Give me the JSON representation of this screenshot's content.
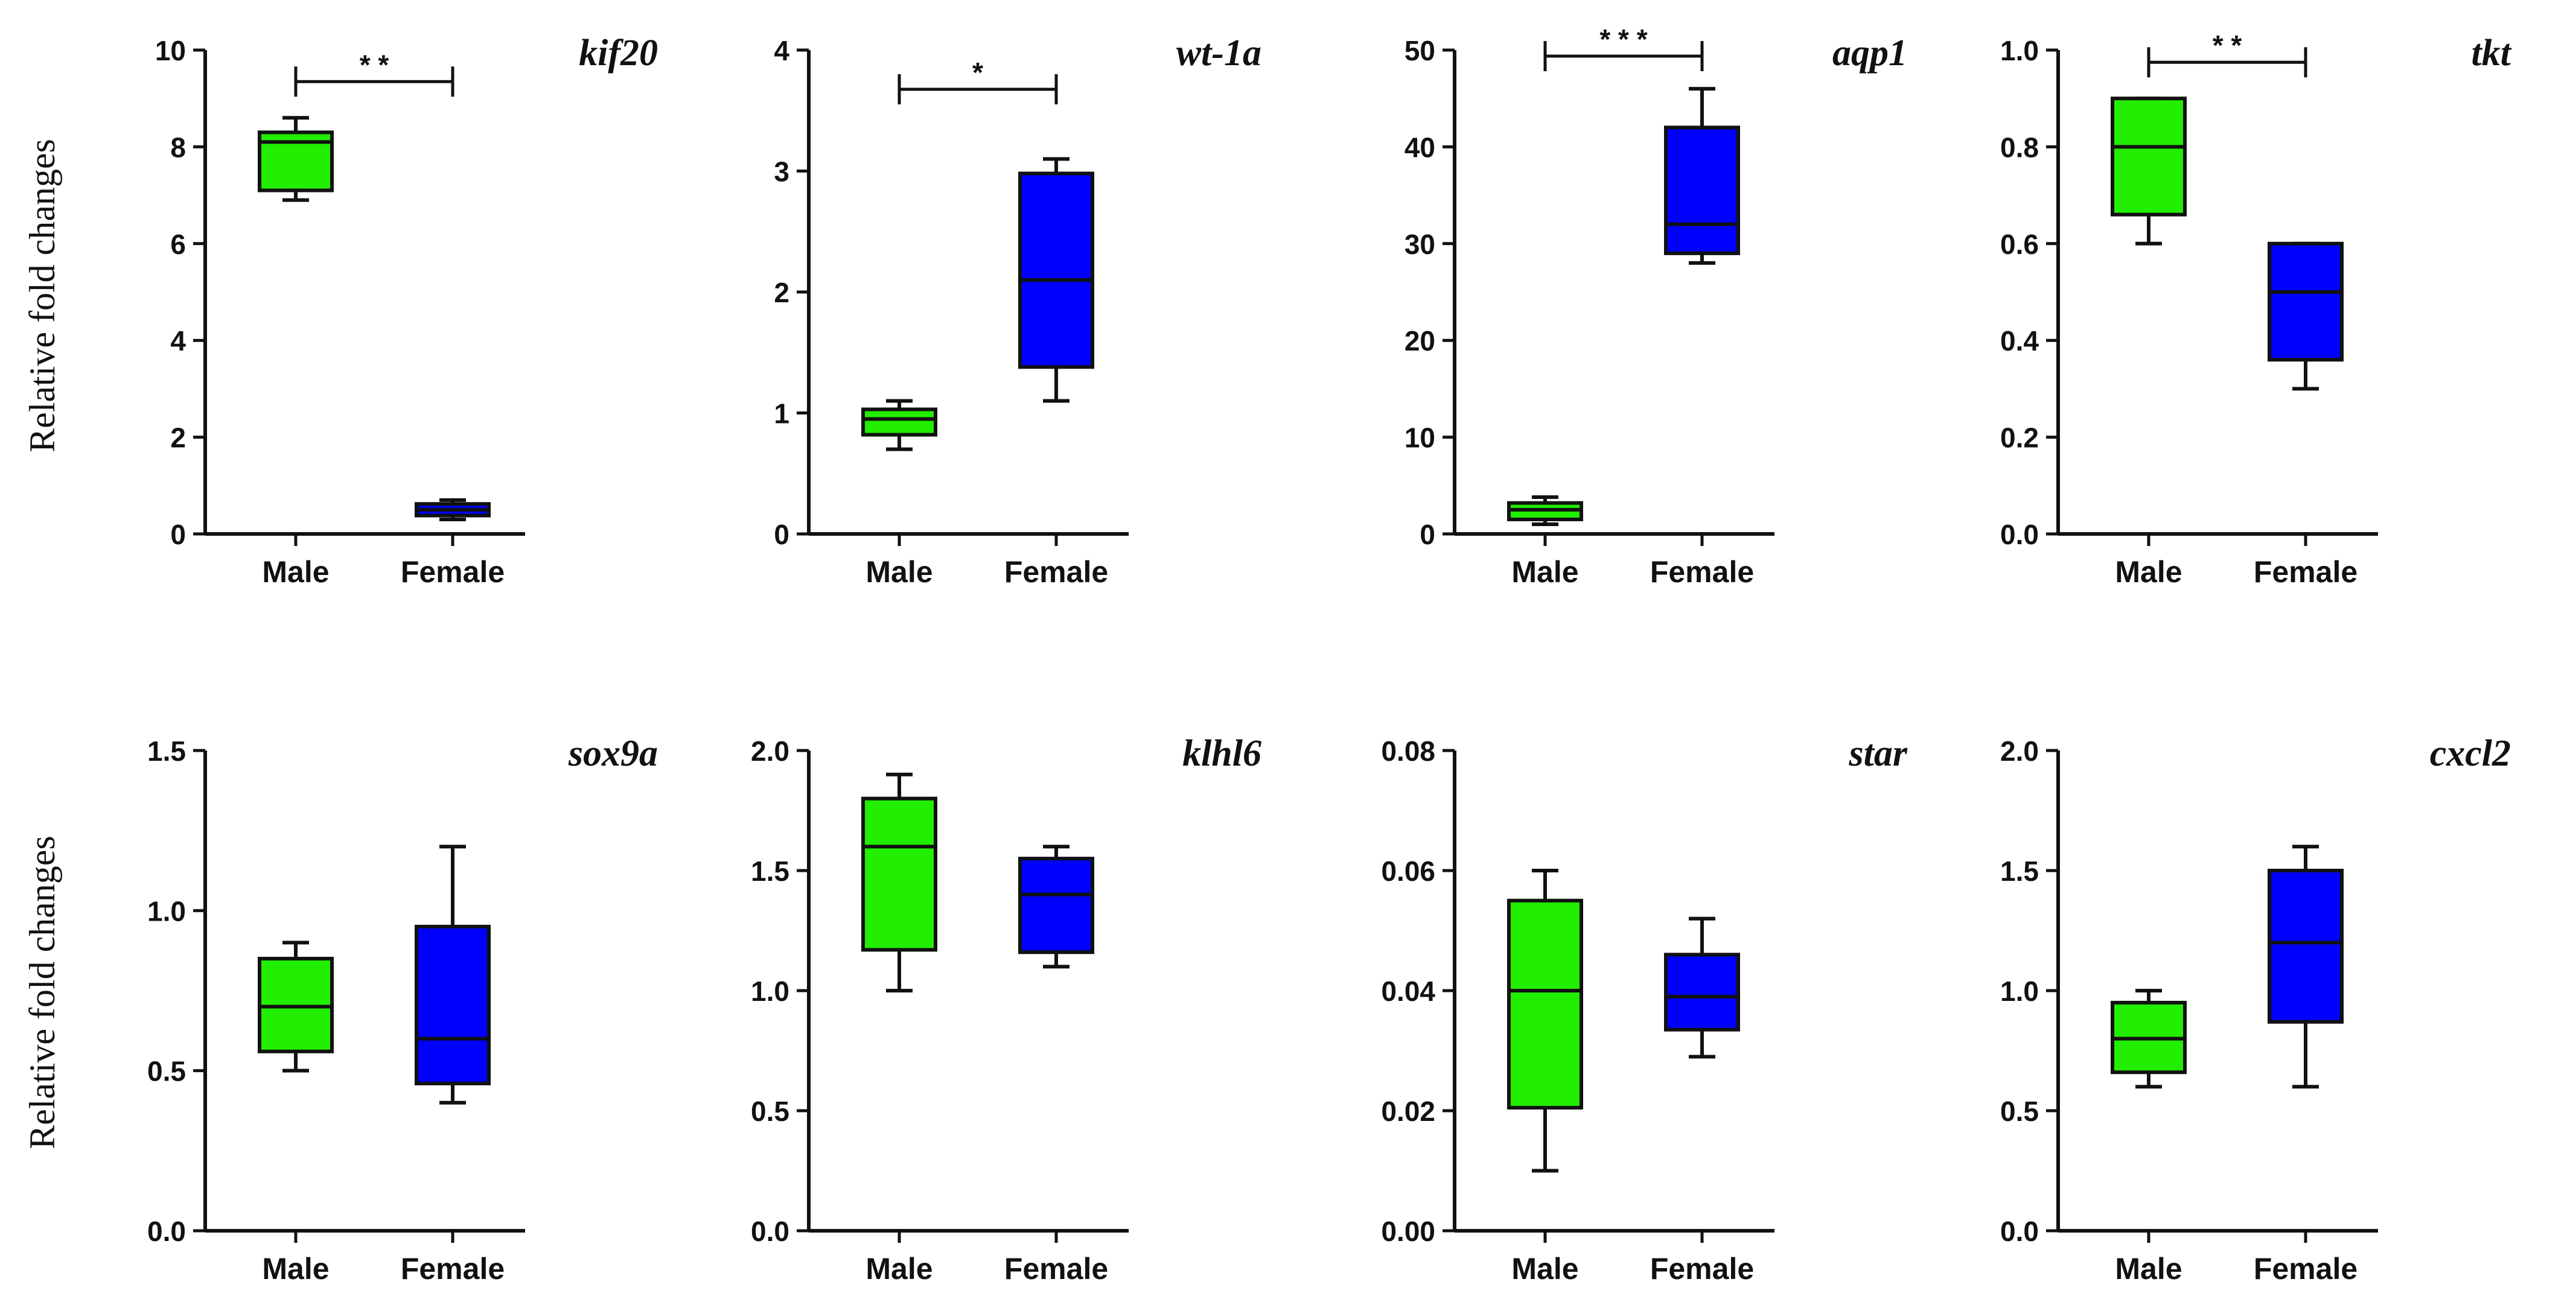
{
  "figure": {
    "y_axis_label": "Relative fold changes",
    "categories": [
      "Male",
      "Female"
    ],
    "colors": {
      "male": "#22ee00",
      "female": "#0000ff",
      "stroke": "#111111"
    }
  },
  "chart_data": [
    {
      "type": "box",
      "title": "kif20",
      "ylim": [
        0,
        10
      ],
      "ticks": [
        0,
        2,
        4,
        6,
        8,
        10
      ],
      "categories": [
        "Male",
        "Female"
      ],
      "series": [
        {
          "name": "Male",
          "min": 6.9,
          "q1": 7.1,
          "median": 8.1,
          "q3": 8.3,
          "max": 8.6
        },
        {
          "name": "Female",
          "min": 0.3,
          "q1": 0.38,
          "median": 0.5,
          "q3": 0.62,
          "max": 0.7
        }
      ],
      "significance": "* *"
    },
    {
      "type": "box",
      "title": "wt-1a",
      "ylim": [
        0,
        4
      ],
      "ticks": [
        0,
        1,
        2,
        3,
        4
      ],
      "categories": [
        "Male",
        "Female"
      ],
      "series": [
        {
          "name": "Male",
          "min": 0.7,
          "q1": 0.82,
          "median": 0.95,
          "q3": 1.03,
          "max": 1.1
        },
        {
          "name": "Female",
          "min": 1.1,
          "q1": 1.38,
          "median": 2.1,
          "q3": 2.98,
          "max": 3.1
        }
      ],
      "significance": "*"
    },
    {
      "type": "box",
      "title": "aqp1",
      "ylim": [
        0,
        50
      ],
      "ticks": [
        0,
        10,
        20,
        30,
        40,
        50
      ],
      "categories": [
        "Male",
        "Female"
      ],
      "series": [
        {
          "name": "Male",
          "min": 1.0,
          "q1": 1.5,
          "median": 2.5,
          "q3": 3.2,
          "max": 3.8
        },
        {
          "name": "Female",
          "min": 28,
          "q1": 29,
          "median": 32,
          "q3": 42,
          "max": 46
        }
      ],
      "significance": "* * *"
    },
    {
      "type": "box",
      "title": "tkt",
      "ylim": [
        0,
        1.0
      ],
      "ticks": [
        0.0,
        0.2,
        0.4,
        0.6,
        0.8,
        1.0
      ],
      "categories": [
        "Male",
        "Female"
      ],
      "series": [
        {
          "name": "Male",
          "min": 0.6,
          "q1": 0.66,
          "median": 0.8,
          "q3": 0.9,
          "max": 0.9
        },
        {
          "name": "Female",
          "min": 0.3,
          "q1": 0.36,
          "median": 0.5,
          "q3": 0.6,
          "max": 0.6
        }
      ],
      "significance": "* *"
    },
    {
      "type": "box",
      "title": "sox9a",
      "ylim": [
        0,
        1.5
      ],
      "ticks": [
        0.0,
        0.5,
        1.0,
        1.5
      ],
      "categories": [
        "Male",
        "Female"
      ],
      "series": [
        {
          "name": "Male",
          "min": 0.5,
          "q1": 0.56,
          "median": 0.7,
          "q3": 0.85,
          "max": 0.9
        },
        {
          "name": "Female",
          "min": 0.4,
          "q1": 0.46,
          "median": 0.6,
          "q3": 0.95,
          "max": 1.2
        }
      ],
      "significance": ""
    },
    {
      "type": "box",
      "title": "klhl6",
      "ylim": [
        0,
        2.0
      ],
      "ticks": [
        0.0,
        0.5,
        1.0,
        1.5,
        2.0
      ],
      "categories": [
        "Male",
        "Female"
      ],
      "series": [
        {
          "name": "Male",
          "min": 1.0,
          "q1": 1.17,
          "median": 1.6,
          "q3": 1.8,
          "max": 1.9
        },
        {
          "name": "Female",
          "min": 1.1,
          "q1": 1.16,
          "median": 1.4,
          "q3": 1.55,
          "max": 1.6
        }
      ],
      "significance": ""
    },
    {
      "type": "box",
      "title": "star",
      "ylim": [
        0,
        0.08
      ],
      "ticks": [
        0.0,
        0.02,
        0.04,
        0.06,
        0.08
      ],
      "categories": [
        "Male",
        "Female"
      ],
      "series": [
        {
          "name": "Male",
          "min": 0.01,
          "q1": 0.0205,
          "median": 0.04,
          "q3": 0.055,
          "max": 0.06
        },
        {
          "name": "Female",
          "min": 0.029,
          "q1": 0.0335,
          "median": 0.039,
          "q3": 0.046,
          "max": 0.052
        }
      ],
      "significance": ""
    },
    {
      "type": "box",
      "title": "cxcl2",
      "ylim": [
        0,
        2.0
      ],
      "ticks": [
        0.0,
        0.5,
        1.0,
        1.5,
        2.0
      ],
      "categories": [
        "Male",
        "Female"
      ],
      "series": [
        {
          "name": "Male",
          "min": 0.6,
          "q1": 0.66,
          "median": 0.8,
          "q3": 0.95,
          "max": 1.0
        },
        {
          "name": "Female",
          "min": 0.6,
          "q1": 0.87,
          "median": 1.2,
          "q3": 1.5,
          "max": 1.6
        }
      ],
      "significance": ""
    }
  ]
}
